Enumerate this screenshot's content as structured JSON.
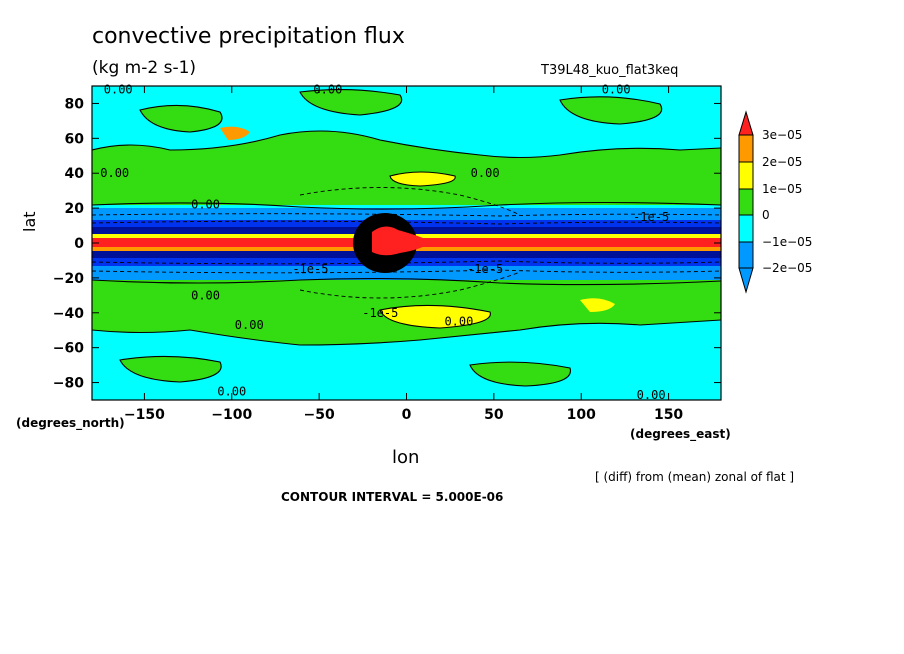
{
  "header": {
    "title": "convective precipitation flux",
    "units": "(kg m-2 s-1)",
    "run_name": "T39L48_kuo_flat3keq"
  },
  "footer": {
    "contour_interval": "CONTOUR INTERVAL = 5.000E-06",
    "note": "[ (diff) from (mean) zonal of flat ]"
  },
  "colors": {
    "red": "#ff2020",
    "orange": "#ff9900",
    "yellow": "#ffff00",
    "green": "#33dd11",
    "cyan": "#00ffff",
    "blue1": "#0099ff",
    "blue2": "#0033ee",
    "blue3": "#001199"
  },
  "chart_data": {
    "type": "heatmap",
    "title": "convective precipitation flux",
    "xlabel": "lon",
    "ylabel": "lat",
    "x_units": "(degrees_east)",
    "y_units": "(degrees_north)",
    "xlim": [
      -180,
      180
    ],
    "ylim": [
      -90,
      90
    ],
    "x_ticks": [
      -150,
      -100,
      -50,
      0,
      50,
      100,
      150
    ],
    "y_ticks": [
      80,
      60,
      40,
      20,
      0,
      -20,
      -40,
      -60,
      -80
    ],
    "x_tick_labels": [
      "−150",
      "−100",
      "−50",
      "0",
      "50",
      "100",
      "150"
    ],
    "y_tick_labels": [
      "80",
      "60",
      "40",
      "20",
      "0",
      "−20",
      "−40",
      "−60",
      "−80"
    ],
    "colorbar": {
      "labels": [
        "3e−05",
        "2e−05",
        "1e−05",
        "0",
        "−1e−05",
        "−2e−05"
      ],
      "levels": [
        3e-05,
        2e-05,
        1e-05,
        0,
        -1e-05,
        -2e-05
      ]
    },
    "bands": [
      {
        "lat": [
          60,
          90
        ],
        "value": -3e-06
      },
      {
        "lat": [
          10,
          50
        ],
        "value": 3e-06
      },
      {
        "lat": [
          -50,
          -10
        ],
        "value": 3e-06
      },
      {
        "lat": [
          -90,
          -50
        ],
        "value": -3e-06
      },
      {
        "lat": [
          3,
          10
        ],
        "value": -2.2e-05
      },
      {
        "lat": [
          -10,
          -3
        ],
        "value": -2.2e-05
      },
      {
        "lat": [
          -3,
          3
        ],
        "value": 3.5e-05
      }
    ],
    "contour_labels": [
      {
        "text": "0.00",
        "lon": -165,
        "lat": 88
      },
      {
        "text": "0.00",
        "lon": -45,
        "lat": 88
      },
      {
        "text": "0.00",
        "lon": 120,
        "lat": 88
      },
      {
        "text": "0.00",
        "lon": -167,
        "lat": 40
      },
      {
        "text": "0.00",
        "lon": 45,
        "lat": 40
      },
      {
        "text": "0.00",
        "lon": -115,
        "lat": 22
      },
      {
        "text": "-1e-5",
        "lon": 140,
        "lat": 15
      },
      {
        "text": "-1e-5",
        "lon": -55,
        "lat": -15
      },
      {
        "text": "-1e-5",
        "lon": 45,
        "lat": -15
      },
      {
        "text": "0.00",
        "lon": -115,
        "lat": -30
      },
      {
        "text": "-1e-5",
        "lon": -15,
        "lat": -40
      },
      {
        "text": "0.00",
        "lon": 30,
        "lat": -45
      },
      {
        "text": "0.00",
        "lon": -90,
        "lat": -47
      },
      {
        "text": "0.00",
        "lon": -100,
        "lat": -85
      },
      {
        "text": "0.00",
        "lon": 140,
        "lat": -87
      }
    ]
  }
}
